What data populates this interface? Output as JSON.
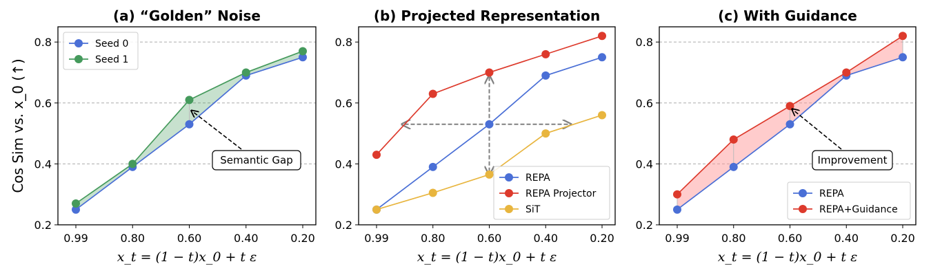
{
  "chart_data": [
    {
      "type": "line",
      "title": "(a) “Golden” Noise",
      "xlabel": "x_t = (1 − t)x_0 + t ε",
      "ylabel": "Cos Sim vs. x_0 (↑)",
      "categories": [
        "0.99",
        "0.80",
        "0.60",
        "0.40",
        "0.20"
      ],
      "ylim": [
        0.2,
        0.85
      ],
      "yticks": [
        "0.2",
        "0.4",
        "0.6",
        "0.8"
      ],
      "grid_y": [
        0.4,
        0.6,
        0.8
      ],
      "legend_position": "top-left",
      "series": [
        {
          "name": "Seed 0",
          "color": "#4a6fd6",
          "values": [
            0.25,
            0.39,
            0.53,
            0.69,
            0.75
          ]
        },
        {
          "name": "Seed 1",
          "color": "#459a5c",
          "values": [
            0.27,
            0.4,
            0.61,
            0.7,
            0.77
          ]
        }
      ],
      "fill_between": {
        "color": "#459a5c"
      },
      "annotation": {
        "text": "Semantic Gap",
        "target_category": "0.60",
        "target_value": 0.575
      }
    },
    {
      "type": "line",
      "title": "(b) Projected Representation",
      "xlabel": "x_t = (1 − t)x_0 + t ε",
      "ylabel": "",
      "categories": [
        "0.99",
        "0.80",
        "0.60",
        "0.40",
        "0.20"
      ],
      "ylim": [
        0.2,
        0.85
      ],
      "yticks": [
        "0.2",
        "0.4",
        "0.6",
        "0.8"
      ],
      "grid_y": [],
      "legend_position": "bottom-right",
      "series": [
        {
          "name": "REPA",
          "color": "#4a6fd6",
          "values": [
            0.25,
            0.39,
            0.53,
            0.69,
            0.75
          ]
        },
        {
          "name": "REPA Projector",
          "color": "#dd3a2c",
          "values": [
            0.43,
            0.63,
            0.7,
            0.76,
            0.82
          ]
        },
        {
          "name": "SiT",
          "color": "#e8b53e",
          "values": [
            0.25,
            0.305,
            0.365,
            0.5,
            0.56
          ]
        }
      ],
      "crosshair": {
        "category": "0.60",
        "value": 0.53
      }
    },
    {
      "type": "line",
      "title": "(c) With Guidance",
      "xlabel": "x_t = (1 − t)x_0 + t ε",
      "ylabel": "",
      "categories": [
        "0.99",
        "0.80",
        "0.60",
        "0.40",
        "0.20"
      ],
      "ylim": [
        0.2,
        0.85
      ],
      "yticks": [
        "0.2",
        "0.4",
        "0.6",
        "0.8"
      ],
      "grid_y": [
        0.4,
        0.6,
        0.8
      ],
      "legend_position": "bottom-right",
      "series": [
        {
          "name": "REPA",
          "color": "#4a6fd6",
          "values": [
            0.25,
            0.39,
            0.53,
            0.69,
            0.75
          ]
        },
        {
          "name": "REPA+Guidance",
          "color": "#dd3a2c",
          "values": [
            0.3,
            0.48,
            0.59,
            0.7,
            0.82
          ]
        }
      ],
      "fill_between": {
        "color": "#ff9a9a"
      },
      "annotation": {
        "text": "Improvement",
        "target_category": "0.60",
        "target_value": 0.58
      }
    }
  ]
}
